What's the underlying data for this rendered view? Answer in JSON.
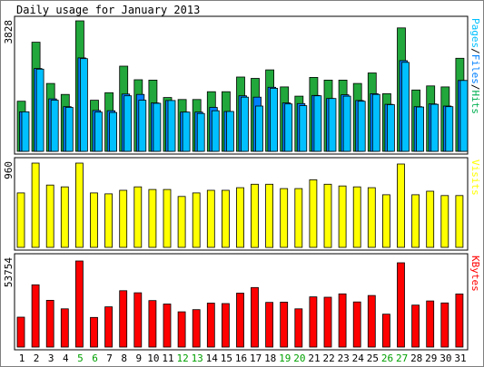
{
  "chart_data": {
    "type": "bar",
    "title": "Daily usage for January 2013",
    "days": [
      "1",
      "2",
      "3",
      "4",
      "5",
      "6",
      "7",
      "8",
      "9",
      "10",
      "11",
      "12",
      "13",
      "14",
      "15",
      "16",
      "17",
      "18",
      "19",
      "20",
      "21",
      "22",
      "23",
      "24",
      "25",
      "26",
      "27",
      "28",
      "29",
      "30",
      "31"
    ],
    "weekend_days": [
      "5",
      "6",
      "12",
      "13",
      "19",
      "20",
      "26",
      "27"
    ],
    "panels": [
      {
        "name": "hits-files-pages",
        "ymax": 3828,
        "ymax_label": "3828",
        "legend": [
          {
            "text": "Pages",
            "color": "#00c0ff"
          },
          {
            "text": "/",
            "color": "#000000"
          },
          {
            "text": "Files",
            "color": "#0080ff"
          },
          {
            "text": "/",
            "color": "#000000"
          },
          {
            "text": "Hits",
            "color": "#00b050"
          }
        ],
        "series": [
          {
            "name": "Hits",
            "color": "#21a73b",
            "values": [
              1470,
              3200,
              1990,
              1670,
              3828,
              1500,
              1720,
              2500,
              2100,
              2090,
              1580,
              1520,
              1520,
              1750,
              1750,
              2180,
              2140,
              2390,
              1890,
              1620,
              2170,
              2090,
              2090,
              1990,
              2300,
              1690,
              3620,
              1800,
              1920,
              1890,
              2730
            ]
          },
          {
            "name": "Files",
            "color": "#0080ff",
            "values": [
              1160,
              2430,
              1540,
              1310,
              2740,
              1200,
              1190,
              1680,
              1670,
              1420,
              1490,
              1150,
              1150,
              1290,
              1170,
              1630,
              1590,
              1880,
              1420,
              1400,
              1640,
              1550,
              1660,
              1490,
              1690,
              1380,
              2660,
              1310,
              1390,
              1330,
              2080
            ]
          },
          {
            "name": "Pages",
            "color": "#00c0ff",
            "values": [
              1160,
              2410,
              1500,
              1290,
              2720,
              1150,
              1140,
              1630,
              1500,
              1410,
              1490,
              1150,
              1110,
              1190,
              1170,
              1590,
              1330,
              1850,
              1390,
              1340,
              1630,
              1550,
              1620,
              1470,
              1670,
              1370,
              2610,
              1300,
              1380,
              1310,
              2080
            ]
          }
        ]
      },
      {
        "name": "visits",
        "ymax": 960,
        "ymax_label": "960",
        "legend": [
          {
            "text": "Visits",
            "color": "#ffff00"
          }
        ],
        "series": [
          {
            "name": "Visits",
            "color": "#ffff00",
            "values": [
              620,
              960,
              710,
              690,
              960,
              620,
              610,
              650,
              690,
              660,
              660,
              580,
              620,
              650,
              650,
              680,
              720,
              720,
              670,
              670,
              770,
              720,
              700,
              690,
              680,
              600,
              950,
              600,
              640,
              590,
              590
            ]
          }
        ]
      },
      {
        "name": "kbytes",
        "ymax": 53754,
        "ymax_label": "53754",
        "legend": [
          {
            "text": "KBytes",
            "color": "#ff0000"
          }
        ],
        "series": [
          {
            "name": "KBytes",
            "color": "#ff0000",
            "values": [
              18650,
              38870,
              29200,
              23880,
              53754,
              18530,
              25150,
              35180,
              33920,
              29050,
              26870,
              22000,
              23350,
              27460,
              27180,
              33640,
              37170,
              27900,
              28060,
              23880,
              31370,
              31110,
              33240,
              28200,
              32170,
              20550,
              52600,
              26190,
              28810,
              27560,
              33170
            ]
          }
        ]
      }
    ]
  }
}
